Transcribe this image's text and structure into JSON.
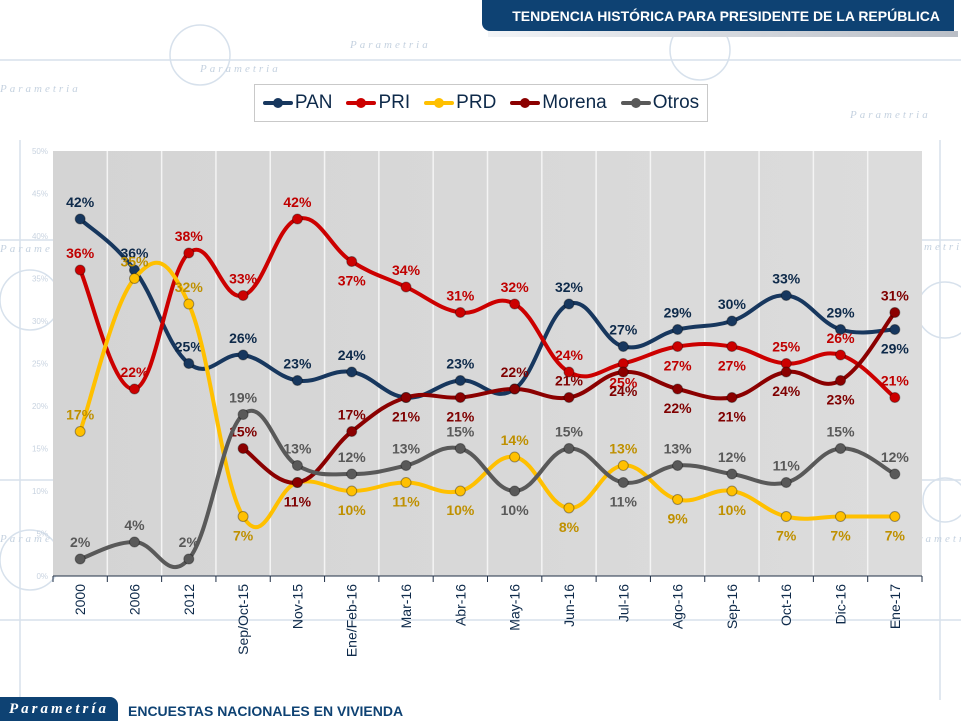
{
  "header": {
    "title": "TENDENCIA HISTÓRICA PARA PRESIDENTE DE LA REPÚBLICA"
  },
  "footer": {
    "brand": "Parametría",
    "subtitle": "ENCUESTAS NACIONALES  EN VIVIENDA"
  },
  "legend": [
    {
      "name": "PAN",
      "color": "#17375e"
    },
    {
      "name": "PRI",
      "color": "#cc0000"
    },
    {
      "name": "PRD",
      "color": "#ffc000"
    },
    {
      "name": "Morena",
      "color": "#8b0000"
    },
    {
      "name": "Otros",
      "color": "#595959"
    }
  ],
  "chart_data": {
    "type": "line",
    "title": "TENDENCIA HISTÓRICA PARA PRESIDENTE DE LA REPÚBLICA",
    "xlabel": "",
    "ylabel": "",
    "ylim": [
      0,
      50
    ],
    "yticks": [
      "0%",
      "5%",
      "10%",
      "15%",
      "20%",
      "25%",
      "30%",
      "35%",
      "40%",
      "45%",
      "50%"
    ],
    "grid": "vertical",
    "legend_position": "top",
    "smooth": true,
    "categories": [
      "2000",
      "2006",
      "2012",
      "Sep/Oct-15",
      "Nov-15",
      "Ene/Feb-16",
      "Mar-16",
      "Abr-16",
      "May-16",
      "Jun-16",
      "Jul-16",
      "Ago-16",
      "Sep-16",
      "Oct-16",
      "Dic-16",
      "Ene-17"
    ],
    "series": [
      {
        "name": "PAN",
        "color": "#17375e",
        "label_color": "#0e2a4a",
        "values": [
          42,
          36,
          25,
          26,
          23,
          24,
          21,
          23,
          22,
          32,
          27,
          29,
          30,
          33,
          29,
          29
        ],
        "labels": [
          "42%",
          "36%",
          "25%",
          "26%",
          "23%",
          "24%",
          "",
          "23%",
          "",
          "32%",
          "27%",
          "29%",
          "30%",
          "33%",
          "29%",
          "29%"
        ]
      },
      {
        "name": "PRI",
        "color": "#cc0000",
        "label_color": "#c00000",
        "values": [
          36,
          22,
          38,
          33,
          42,
          37,
          34,
          31,
          32,
          24,
          25,
          27,
          27,
          25,
          26,
          21
        ],
        "labels": [
          "36%",
          "22%",
          "38%",
          "33%",
          "42%",
          "37%",
          "34%",
          "31%",
          "32%",
          "24%",
          "25%",
          "27%",
          "27%",
          "25%",
          "26%",
          "21%"
        ]
      },
      {
        "name": "PRD",
        "color": "#ffc000",
        "label_color": "#bf9000",
        "values": [
          17,
          35,
          32,
          7,
          11,
          10,
          11,
          10,
          14,
          8,
          13,
          9,
          10,
          7,
          7,
          7
        ],
        "labels": [
          "17%",
          "35%",
          "32%",
          "7%",
          "",
          "10%",
          "11%",
          "10%",
          "14%",
          "8%",
          "13%",
          "9%",
          "10%",
          "7%",
          "7%",
          "7%"
        ]
      },
      {
        "name": "Morena",
        "color": "#8b0000",
        "label_color": "#7f0000",
        "values": [
          null,
          null,
          null,
          15,
          11,
          17,
          21,
          21,
          22,
          21,
          24,
          22,
          21,
          24,
          23,
          31
        ],
        "labels": [
          "",
          "",
          "",
          "15%",
          "11%",
          "17%",
          "21%",
          "21%",
          "22%",
          "21%",
          "24%",
          "22%",
          "21%",
          "24%",
          "23%",
          "31%"
        ]
      },
      {
        "name": "Otros",
        "color": "#595959",
        "label_color": "#595959",
        "values": [
          2,
          4,
          2,
          19,
          13,
          12,
          13,
          15,
          10,
          15,
          11,
          13,
          12,
          11,
          15,
          12
        ],
        "labels": [
          "2%",
          "4%",
          "2%",
          "19%",
          "13%",
          "12%",
          "13%",
          "15%",
          "10%",
          "15%",
          "11%",
          "13%",
          "12%",
          "11%",
          "15%",
          "12%"
        ]
      }
    ]
  }
}
